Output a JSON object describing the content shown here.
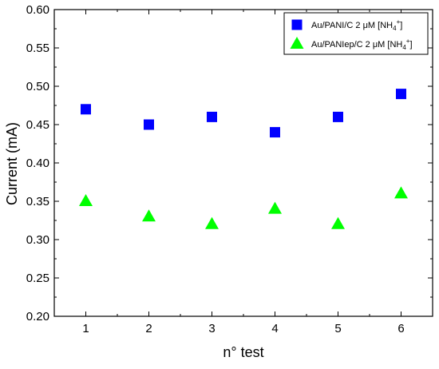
{
  "chart_data": {
    "type": "scatter",
    "title": "",
    "xlabel": "n° test",
    "ylabel": "Current (mA)",
    "xlim": [
      0.5,
      6.5
    ],
    "ylim": [
      0.2,
      0.6
    ],
    "xticks": [
      1,
      2,
      3,
      4,
      5,
      6
    ],
    "xtick_labels": [
      "1",
      "2",
      "3",
      "4",
      "5",
      "6"
    ],
    "yticks": [
      0.2,
      0.25,
      0.3,
      0.35,
      0.4,
      0.45,
      0.5,
      0.55,
      0.6
    ],
    "ytick_labels": [
      "0.20",
      "0.25",
      "0.30",
      "0.35",
      "0.40",
      "0.45",
      "0.50",
      "0.55",
      "0.60"
    ],
    "grid": false,
    "legend_position": "top-right",
    "series": [
      {
        "name_parts": [
          "Au/PANI/C 2 μM [NH",
          "4",
          "+",
          "]"
        ],
        "marker": "square",
        "color": "#0000ff",
        "x": [
          1,
          2,
          3,
          4,
          5,
          6
        ],
        "y": [
          0.47,
          0.45,
          0.46,
          0.44,
          0.46,
          0.49
        ]
      },
      {
        "name_parts": [
          "Au/PANIep/C 2 μM [NH",
          "4",
          "+",
          "]"
        ],
        "marker": "triangle",
        "color": "#00ff00",
        "x": [
          1,
          2,
          3,
          4,
          5,
          6
        ],
        "y": [
          0.35,
          0.33,
          0.32,
          0.34,
          0.32,
          0.36
        ]
      }
    ]
  }
}
